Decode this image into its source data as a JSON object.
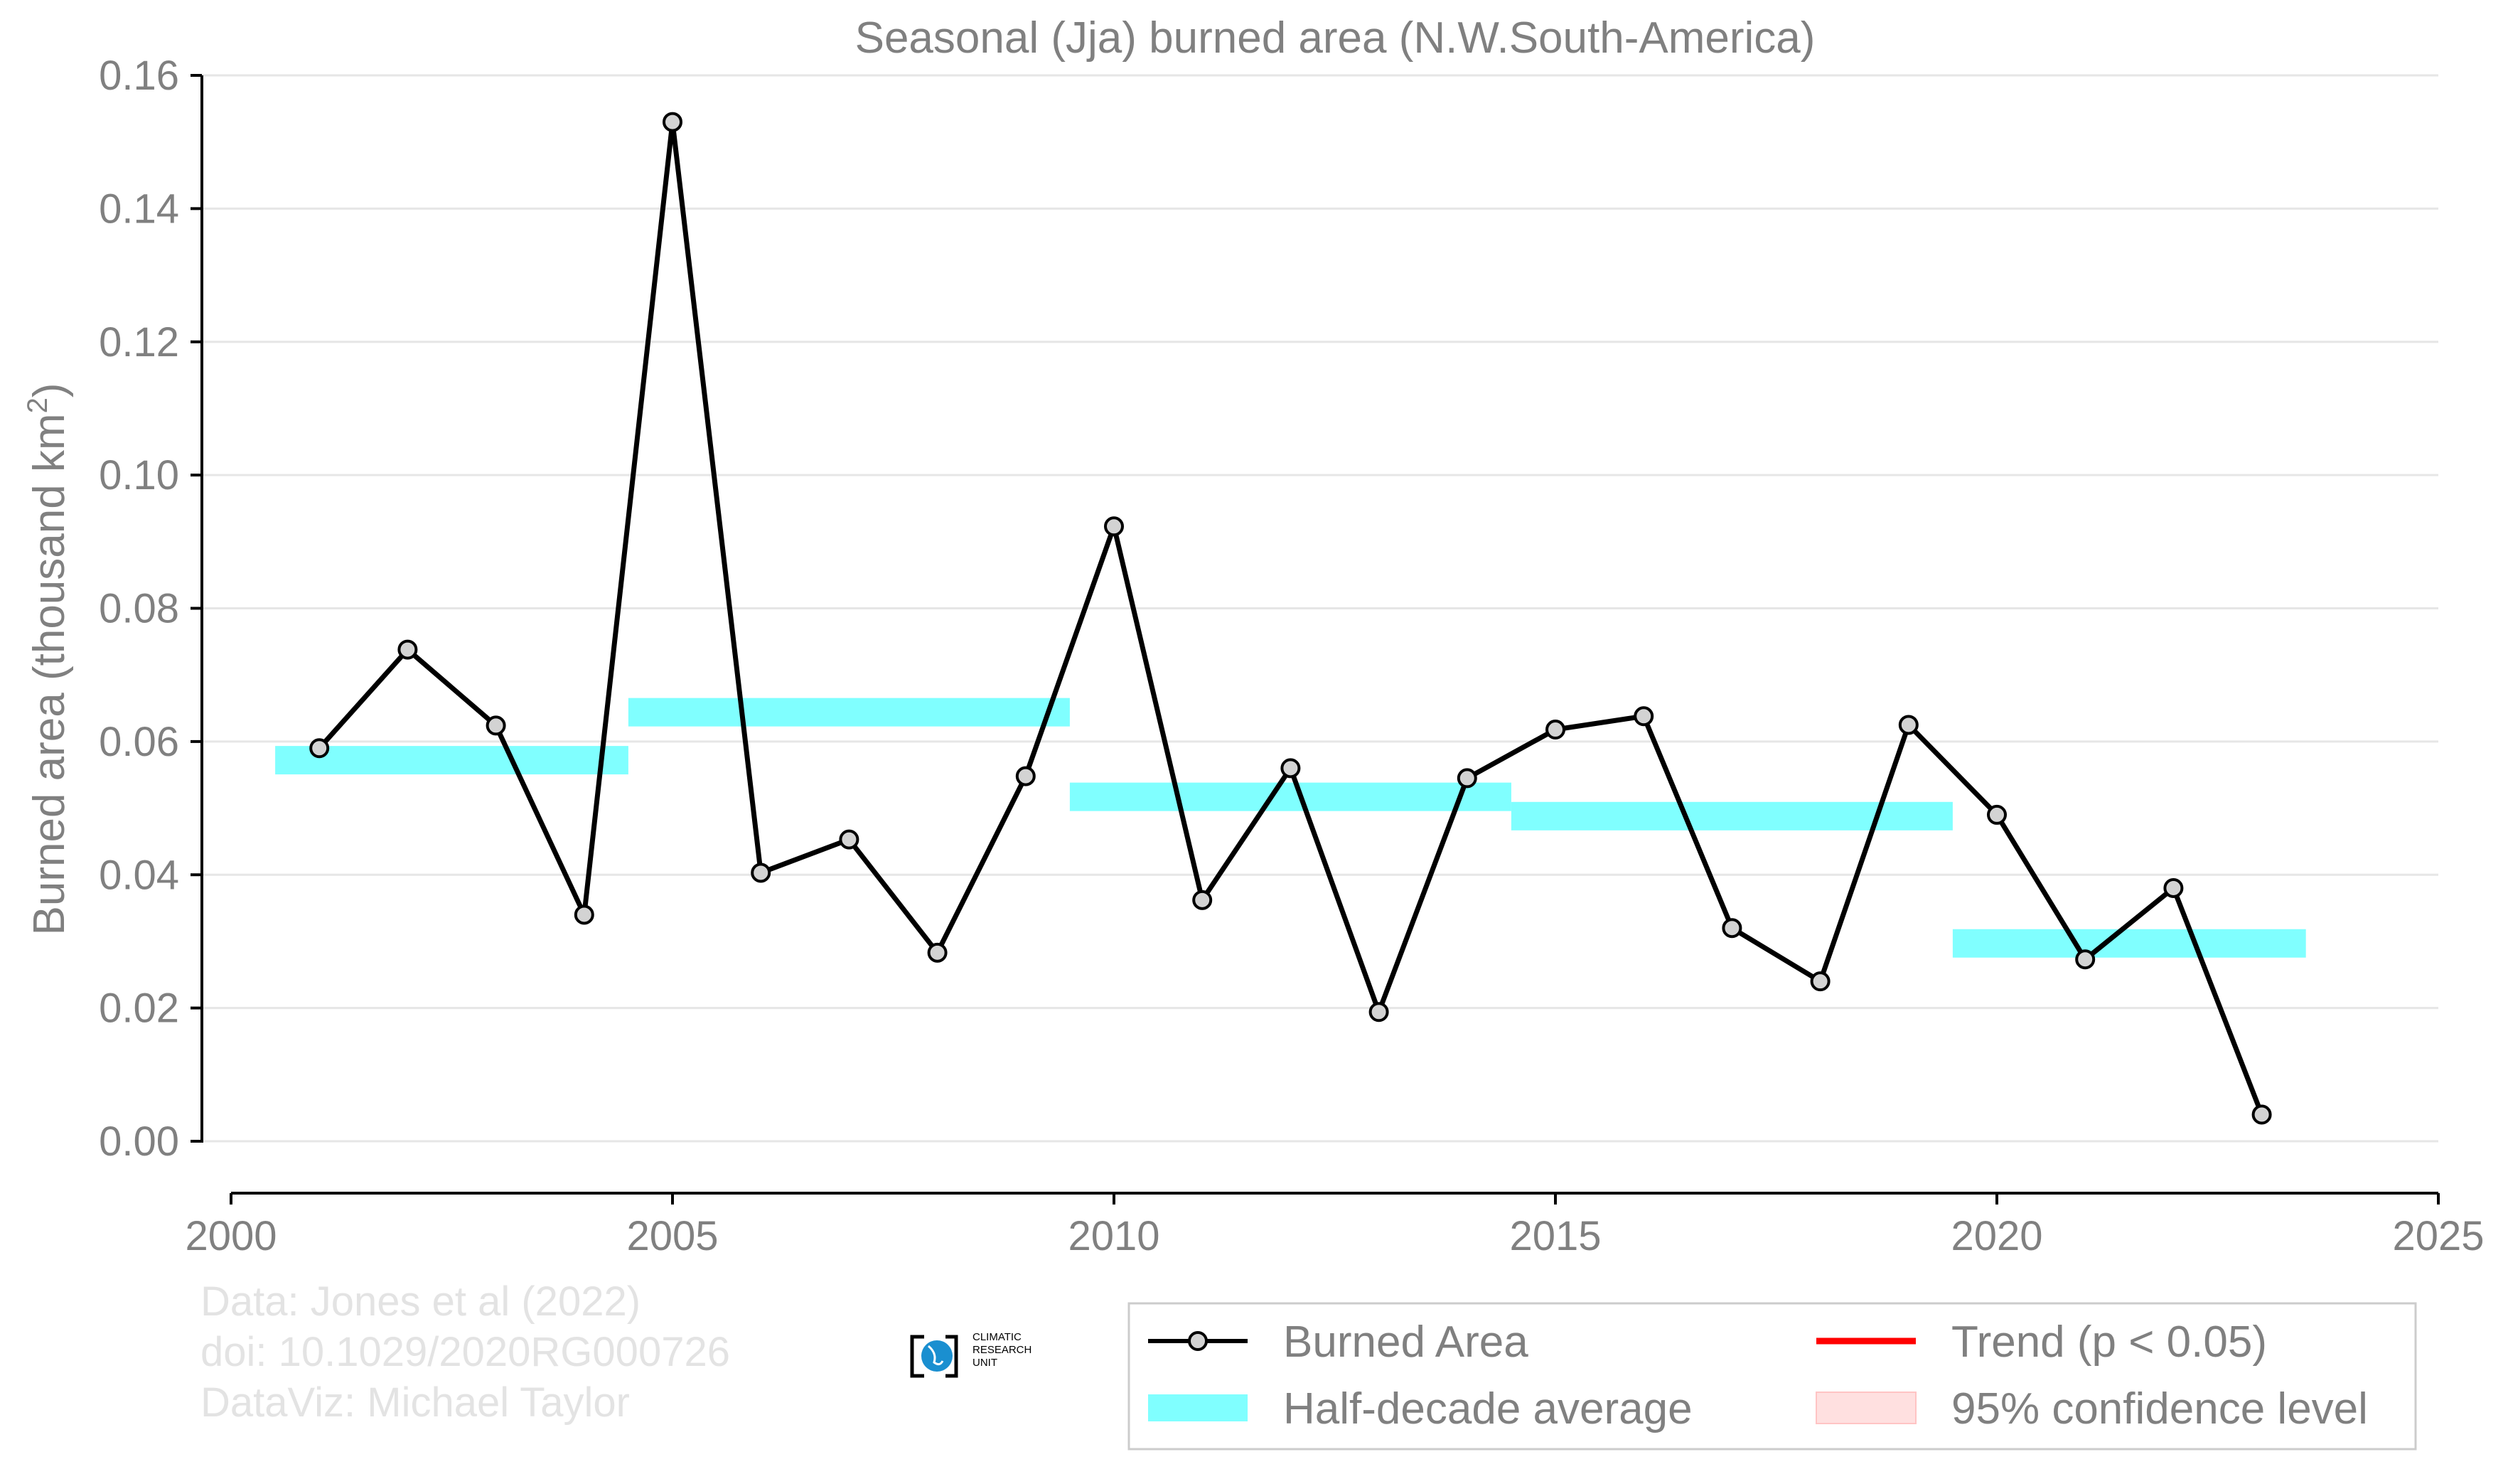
{
  "chart_data": {
    "type": "line",
    "title": "Seasonal (Jja) burned area (N.W.South-America)",
    "ylabel_main": "Burned area (thousand km",
    "ylabel_sup": "2",
    "ylabel_close": ")",
    "xlabel": "",
    "xlim": [
      2000,
      2025
    ],
    "ylim": [
      0.0,
      0.16
    ],
    "x_ticks": [
      "2000",
      "2005",
      "2010",
      "2015",
      "2020",
      "2025"
    ],
    "y_ticks": [
      "0.00",
      "0.02",
      "0.04",
      "0.06",
      "0.08",
      "0.10",
      "0.12",
      "0.14",
      "0.16"
    ],
    "grid": "horizontal",
    "series": [
      {
        "name": "Burned Area",
        "color": "#000000",
        "marker_fill": "#d3d3d3",
        "x": [
          2001,
          2002,
          2003,
          2004,
          2005,
          2006,
          2007,
          2008,
          2009,
          2010,
          2011,
          2012,
          2013,
          2014,
          2015,
          2016,
          2017,
          2018,
          2019,
          2020,
          2021,
          2022,
          2023
        ],
        "values": [
          0.059,
          0.0738,
          0.0624,
          0.034,
          0.153,
          0.0403,
          0.0453,
          0.0283,
          0.0548,
          0.0923,
          0.0362,
          0.056,
          0.0194,
          0.0545,
          0.0618,
          0.0638,
          0.032,
          0.024,
          0.0625,
          0.049,
          0.0273,
          0.038,
          0.004
        ]
      }
    ],
    "half_decade_average": {
      "name": "Half-decade average",
      "color": "#80ffff",
      "segments": [
        {
          "x0": 2000.5,
          "x1": 2004.5,
          "y": 0.0572
        },
        {
          "x0": 2004.5,
          "x1": 2009.5,
          "y": 0.0644
        },
        {
          "x0": 2009.5,
          "x1": 2014.5,
          "y": 0.0517
        },
        {
          "x0": 2014.5,
          "x1": 2019.5,
          "y": 0.0488
        },
        {
          "x0": 2019.5,
          "x1": 2023.5,
          "y": 0.0297
        }
      ]
    },
    "legend": {
      "placement": "bottom-right",
      "items": [
        {
          "label": "Burned Area",
          "kind": "line-marker",
          "color": "#000000"
        },
        {
          "label": "Trend (p < 0.05)",
          "kind": "line",
          "color": "#ff0000"
        },
        {
          "label": "Half-decade average",
          "kind": "band",
          "color": "#80ffff"
        },
        {
          "label": "95% confidence level",
          "kind": "patch",
          "color": "#ffe0e0"
        }
      ]
    },
    "credits": [
      "Data: Jones et al (2022)",
      "doi: 10.1029/2020RG000726",
      "DataViz: Michael Taylor"
    ],
    "logo": {
      "lines": [
        "CLIMATIC",
        "RESEARCH",
        "UNIT"
      ],
      "color": "#1a8fd0"
    }
  }
}
